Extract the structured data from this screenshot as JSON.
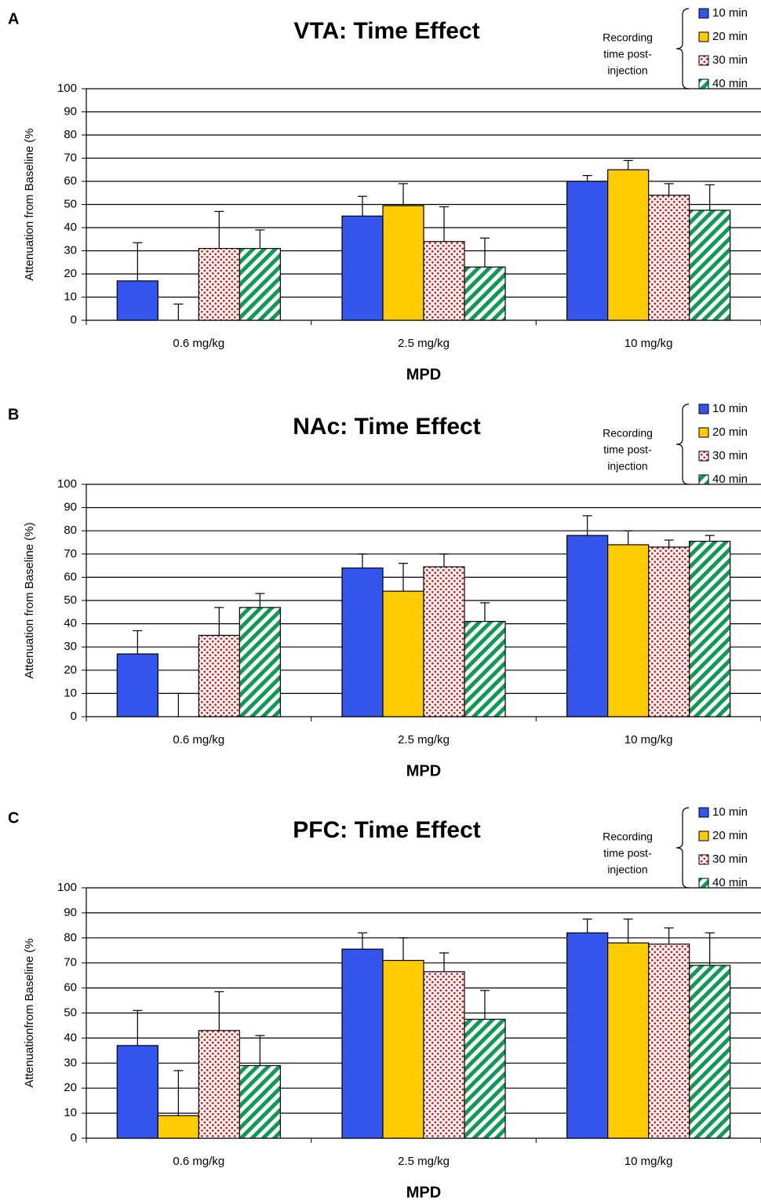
{
  "chart_data": [
    {
      "type": "bar",
      "panel": "A",
      "title": "VTA: Time Effect",
      "y_label": "Attenuation from Baseline (%",
      "x_label": "MPD",
      "categories": [
        "0.6 mg/kg",
        "2.5 mg/kg",
        "10 mg/kg"
      ],
      "legend_title": [
        "Recording",
        "time post-",
        "injection"
      ],
      "series": [
        {
          "name": "10 min",
          "color": "#3355ee",
          "pattern": "solid",
          "values": [
            17,
            45,
            60
          ],
          "errors": [
            16.5,
            8.5,
            2.5
          ]
        },
        {
          "name": "20 min",
          "color": "#ffcc00",
          "pattern": "solid",
          "values": [
            0,
            49.5,
            65
          ],
          "errors": [
            7,
            9.5,
            4
          ]
        },
        {
          "name": "30 min",
          "color": "#ee1111",
          "pattern": "dots",
          "values": [
            31,
            34,
            54
          ],
          "errors": [
            16,
            15,
            5
          ]
        },
        {
          "name": "40 min",
          "color": "#119955",
          "pattern": "stripes",
          "values": [
            31,
            23,
            47.5
          ],
          "errors": [
            8,
            12.5,
            11
          ]
        }
      ],
      "ylim": [
        0,
        100
      ],
      "yticks": [
        0,
        10,
        20,
        30,
        40,
        50,
        60,
        70,
        80,
        90,
        100
      ],
      "grid": true
    },
    {
      "type": "bar",
      "panel": "B",
      "title": "NAc: Time Effect",
      "y_label": "Attenuation from Baseline (%)",
      "x_label": "MPD",
      "categories": [
        "0.6 mg/kg",
        "2.5 mg/kg",
        "10 mg/kg"
      ],
      "legend_title": [
        "Recording",
        "time post-",
        "injection"
      ],
      "series": [
        {
          "name": "10 min",
          "color": "#3355ee",
          "pattern": "solid",
          "values": [
            27,
            64,
            78
          ],
          "errors": [
            10,
            6,
            8.5
          ]
        },
        {
          "name": "20 min",
          "color": "#ffcc00",
          "pattern": "solid",
          "values": [
            0,
            54,
            74
          ],
          "errors": [
            10,
            12,
            6
          ]
        },
        {
          "name": "30 min",
          "color": "#ee1111",
          "pattern": "dots",
          "values": [
            35,
            64.5,
            73
          ],
          "errors": [
            12,
            5.5,
            3
          ]
        },
        {
          "name": "40 min",
          "color": "#119955",
          "pattern": "stripes",
          "values": [
            47,
            41,
            75.5
          ],
          "errors": [
            6,
            8,
            2.5
          ]
        }
      ],
      "ylim": [
        0,
        100
      ],
      "yticks": [
        0,
        10,
        20,
        30,
        40,
        50,
        60,
        70,
        80,
        90,
        100
      ],
      "grid": true
    },
    {
      "type": "bar",
      "panel": "C",
      "title": "PFC: Time Effect",
      "y_label": "Attenuationfrom Baseline (%",
      "x_label": "MPD",
      "categories": [
        "0.6 mg/kg",
        "2.5 mg/kg",
        "10 mg/kg"
      ],
      "legend_title": [
        "Recording",
        "time post-",
        "injection"
      ],
      "series": [
        {
          "name": "10 min",
          "color": "#3355ee",
          "pattern": "solid",
          "values": [
            37,
            75.5,
            82
          ],
          "errors": [
            14,
            6.5,
            5.5
          ]
        },
        {
          "name": "20 min",
          "color": "#ffcc00",
          "pattern": "solid",
          "values": [
            9,
            71,
            78
          ],
          "errors": [
            18,
            9,
            9.5
          ]
        },
        {
          "name": "30 min",
          "color": "#ee1111",
          "pattern": "dots",
          "values": [
            43,
            66.5,
            77.5
          ],
          "errors": [
            15.5,
            7.5,
            6.5
          ]
        },
        {
          "name": "40 min",
          "color": "#119955",
          "pattern": "stripes",
          "values": [
            29,
            47.5,
            69
          ],
          "errors": [
            12,
            11.5,
            13
          ]
        }
      ],
      "ylim": [
        0,
        100
      ],
      "yticks": [
        0,
        10,
        20,
        30,
        40,
        50,
        60,
        70,
        80,
        90,
        100
      ],
      "grid": true
    }
  ]
}
